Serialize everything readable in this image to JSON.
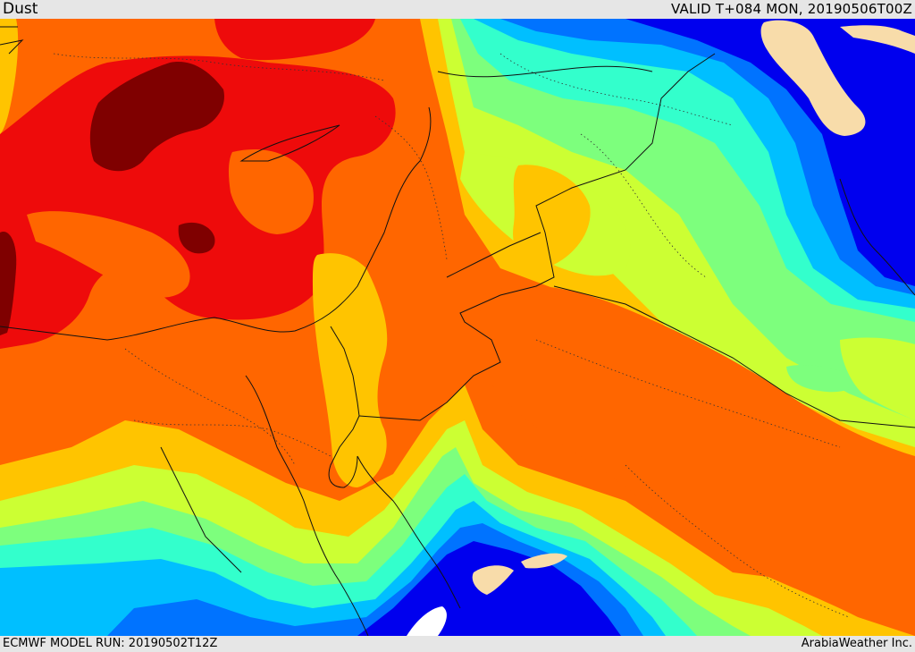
{
  "header": {
    "product_title": "Dust",
    "valid_time": "VALID T+084 MON, 20190506T00Z"
  },
  "footer": {
    "model_run": "ECMWF MODEL RUN: 20190502T12Z",
    "credit": "ArabiaWeather Inc."
  },
  "palette": {
    "darkest_red": "#7f0000",
    "red": "#ee0b0b",
    "orange": "#ff6600",
    "amber": "#ffc400",
    "lime": "#ccff33",
    "light_green": "#7dff7d",
    "aquamarine": "#33ffcc",
    "cyan": "#00bfff",
    "blue": "#0073ff",
    "deep_blue": "#0000ee",
    "peach": "#f8dcaa",
    "white": "#ffffff"
  }
}
